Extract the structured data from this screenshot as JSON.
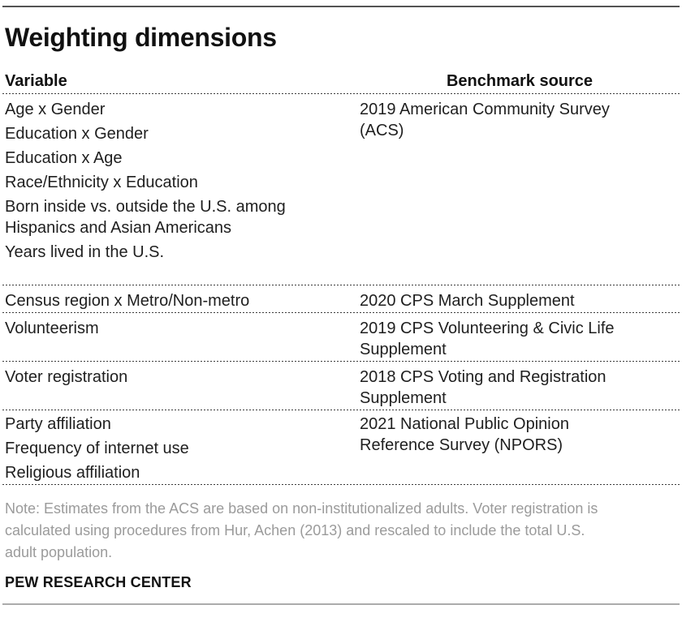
{
  "page": {
    "title": "Weighting dimensions",
    "footer": "PEW RESEARCH CENTER"
  },
  "colors": {
    "text": "#1f1f1f",
    "heading": "#111111",
    "note": "#9b9b9b",
    "top_rule": "#545454",
    "bottom_rule": "#ababab",
    "dotted_rule": "#3c3c3c"
  },
  "table": {
    "headers": {
      "variable": "Variable",
      "source": "Benchmark source"
    },
    "rows": [
      {
        "variables": [
          {
            "lines": [
              "Age x Gender"
            ]
          },
          {
            "lines": [
              "Education x Gender"
            ]
          },
          {
            "lines": [
              "Education x Age"
            ]
          },
          {
            "lines": [
              "Race/Ethnicity x Education"
            ]
          },
          {
            "lines": [
              "Born inside vs. outside the U.S. among",
              "Hispanics and Asian Americans"
            ]
          },
          {
            "lines": [
              "Years lived in the U.S."
            ]
          }
        ],
        "source_lines": [
          "2019 American Community Survey",
          "(ACS)"
        ]
      },
      {
        "variables": [
          {
            "lines": [
              "Census region x Metro/Non-metro"
            ]
          }
        ],
        "source_lines": [
          "2020 CPS March Supplement"
        ]
      },
      {
        "variables": [
          {
            "lines": [
              "Volunteerism"
            ]
          }
        ],
        "source_lines": [
          "2019 CPS Volunteering & Civic Life",
          "Supplement"
        ]
      },
      {
        "variables": [
          {
            "lines": [
              "Voter registration"
            ]
          }
        ],
        "source_lines": [
          "2018 CPS Voting and Registration",
          "Supplement"
        ]
      },
      {
        "variables": [
          {
            "lines": [
              "Party affiliation"
            ]
          },
          {
            "lines": [
              "Frequency of internet use"
            ]
          },
          {
            "lines": [
              "Religious affiliation"
            ]
          }
        ],
        "source_lines": [
          "2021 National Public Opinion",
          "Reference Survey (NPORS)"
        ]
      }
    ]
  },
  "note": {
    "lines": [
      "Note: Estimates from the ACS are based on non-institutionalized adults. Voter registration is",
      "calculated using procedures from Hur, Achen (2013) and rescaled to include the total U.S.",
      "adult population."
    ]
  }
}
